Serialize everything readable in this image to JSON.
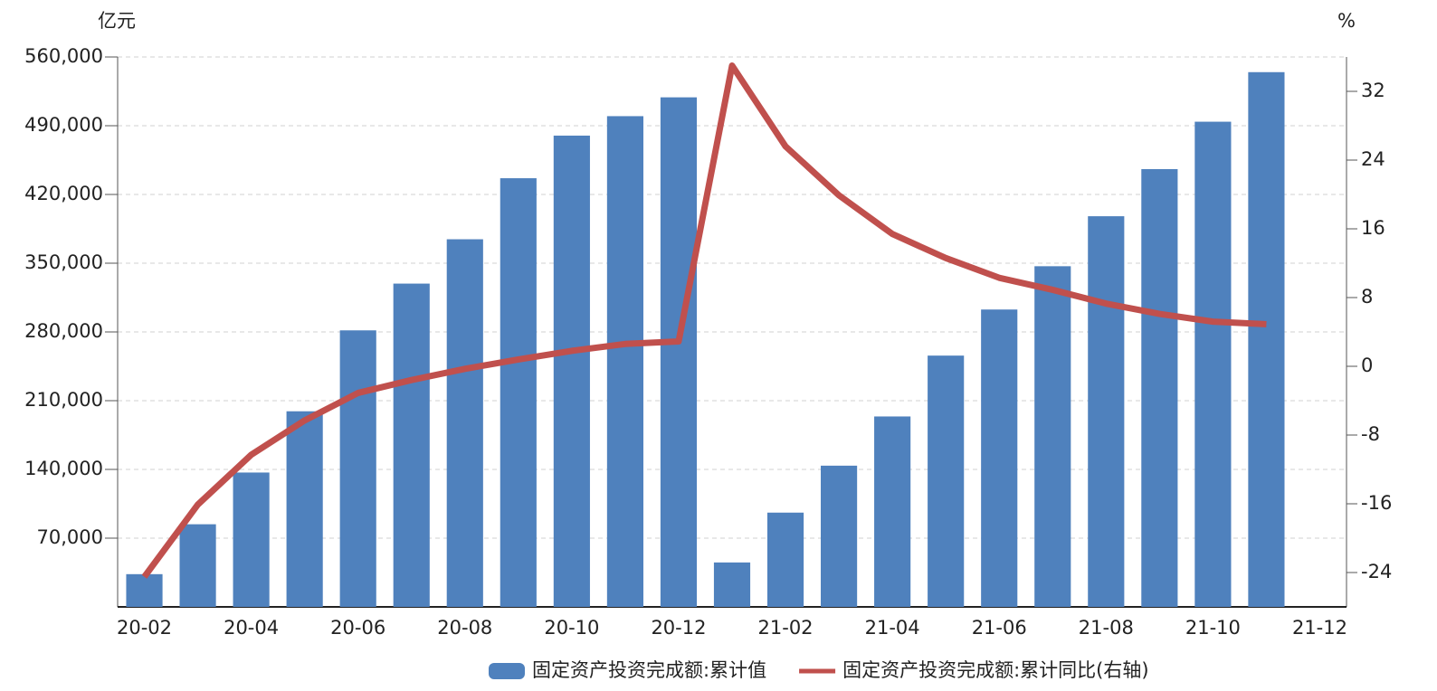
{
  "chart_data": {
    "type": "bar-line",
    "y_unit": "亿元",
    "y2_unit": "%",
    "categories": [
      "20-02",
      null,
      "20-04",
      null,
      "20-06",
      null,
      "20-08",
      null,
      "20-10",
      null,
      "20-12",
      null,
      "21-02",
      null,
      "21-04",
      null,
      "21-06",
      null,
      "21-08",
      null,
      "21-10",
      null,
      "21-12"
    ],
    "series": [
      {
        "name": "固定资产投资完成额:累计值",
        "type": "bar",
        "color": "#4f81bd",
        "axis": "y",
        "values": [
          33323,
          84145,
          136824,
          199194,
          281603,
          329214,
          374370,
          436530,
          479922,
          499736,
          518907,
          45236,
          95994,
          143804,
          193917,
          255900,
          302823,
          346913,
          397827,
          445823,
          494082,
          544547,
          null
        ]
      },
      {
        "name": "固定资产投资完成额:累计同比(右轴)",
        "type": "line",
        "color": "#c0504d",
        "axis": "y2",
        "values": [
          -24.5,
          -16.1,
          -10.3,
          -6.3,
          -3.1,
          -1.6,
          -0.3,
          0.8,
          1.8,
          2.6,
          2.9,
          35.0,
          25.6,
          19.9,
          15.4,
          12.6,
          10.3,
          8.9,
          7.3,
          6.1,
          5.2,
          4.9,
          null
        ]
      }
    ],
    "ylim": [
      0,
      560000
    ],
    "yticks": [
      {
        "value": 70000,
        "label": "70,000"
      },
      {
        "value": 140000,
        "label": "140,000"
      },
      {
        "value": 210000,
        "label": "210,000"
      },
      {
        "value": 280000,
        "label": "280,000"
      },
      {
        "value": 350000,
        "label": "350,000"
      },
      {
        "value": 420000,
        "label": "420,000"
      },
      {
        "value": 490000,
        "label": "490,000"
      },
      {
        "value": 560000,
        "label": "560,000"
      }
    ],
    "y2lim": [
      -28,
      36
    ],
    "y2ticks": [
      -24,
      -16,
      -8,
      0,
      8,
      16,
      24,
      32
    ],
    "grid": true
  }
}
